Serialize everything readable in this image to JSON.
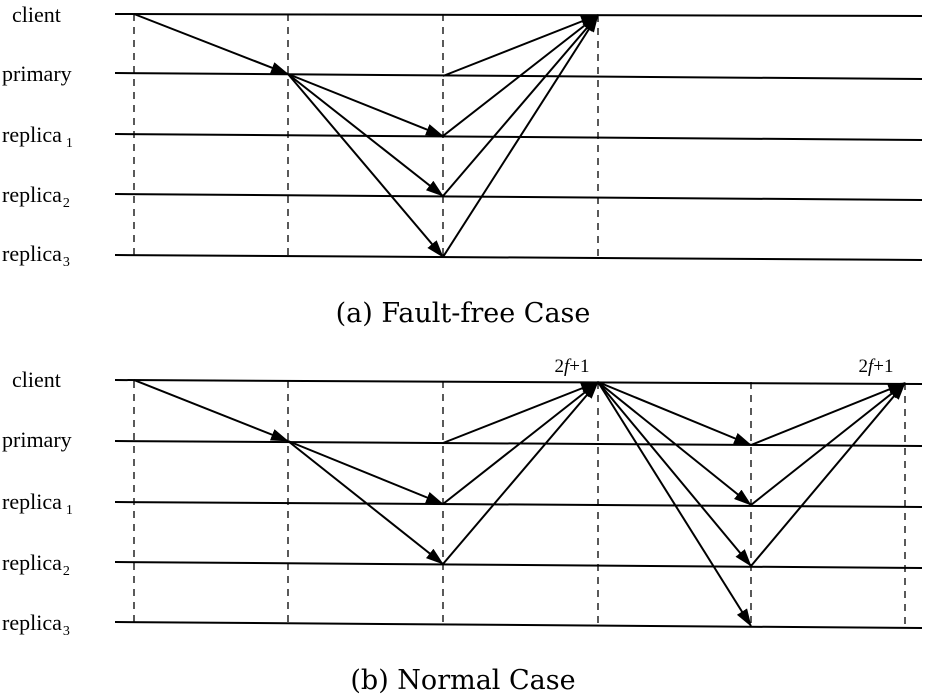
{
  "panels": [
    {
      "id": "a",
      "caption": "(a) Fault-free Case",
      "rows": [
        {
          "name": "client",
          "label": "client",
          "subscript": ""
        },
        {
          "name": "primary",
          "label": "primary",
          "subscript": ""
        },
        {
          "name": "replica-1",
          "label": "replica",
          "subscript": "1"
        },
        {
          "name": "replica-2",
          "label": "replica",
          "subscript": "2"
        },
        {
          "name": "replica-3",
          "label": "replica",
          "subscript": "3"
        }
      ],
      "quorum_labels": []
    },
    {
      "id": "b",
      "caption": "(b) Normal Case",
      "rows": [
        {
          "name": "client",
          "label": "client",
          "subscript": ""
        },
        {
          "name": "primary",
          "label": "primary",
          "subscript": ""
        },
        {
          "name": "replica-1",
          "label": "replica",
          "subscript": "1"
        },
        {
          "name": "replica-2",
          "label": "replica",
          "subscript": "2"
        },
        {
          "name": "replica-3",
          "label": "replica",
          "subscript": "3"
        }
      ],
      "quorum_labels": [
        "2f+1",
        "2f+1"
      ]
    }
  ]
}
